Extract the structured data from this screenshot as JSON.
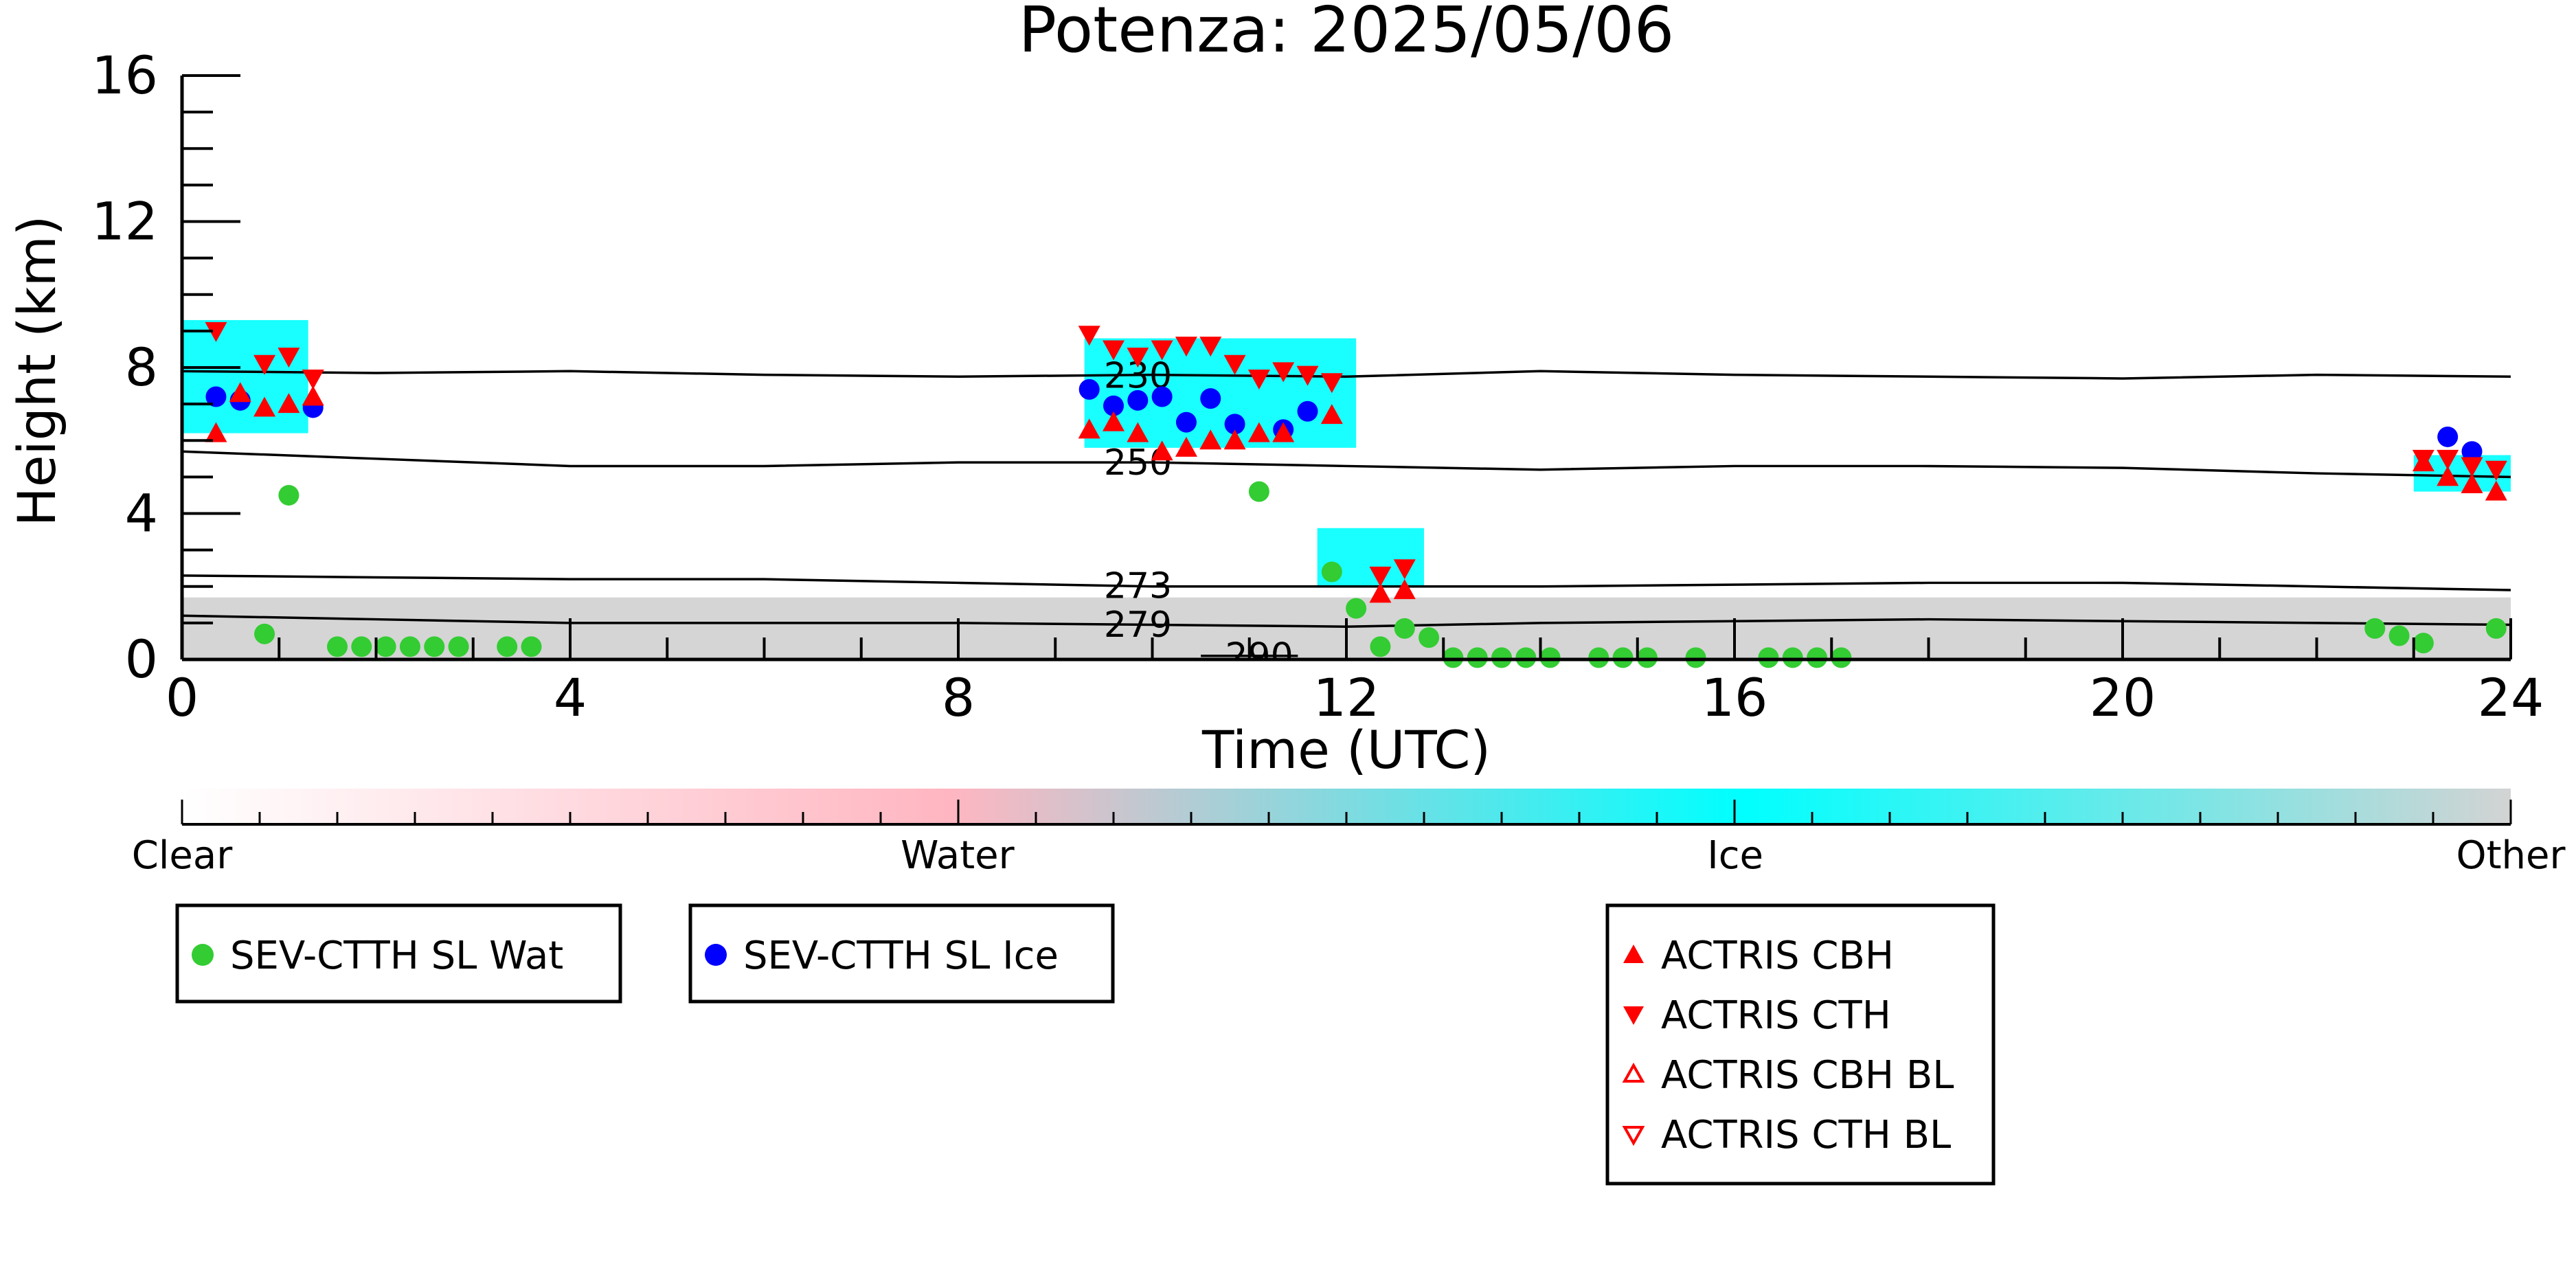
{
  "chart_data": {
    "type": "scatter",
    "title": "Potenza: 2025/05/06",
    "xlabel": "Time (UTC)",
    "ylabel": "Height (km)",
    "xlim": [
      0,
      24
    ],
    "ylim": [
      0,
      16
    ],
    "xticks": [
      0,
      4,
      8,
      12,
      16,
      20,
      24
    ],
    "yticks": [
      0,
      4,
      8,
      12,
      16
    ],
    "grid": false,
    "colorbar": {
      "labels": [
        "Clear",
        "Water",
        "Ice",
        "Other"
      ],
      "stops": [
        {
          "pos": 0.0,
          "color": "#ffffff"
        },
        {
          "pos": 0.33,
          "color": "#ffb6c1"
        },
        {
          "pos": 0.67,
          "color": "#00ffff"
        },
        {
          "pos": 1.0,
          "color": "#d3d3d3"
        }
      ]
    },
    "cloud_regions": [
      {
        "type": "ice",
        "color": "#00ffff",
        "x0": 0.0,
        "x1": 1.3,
        "y0": 6.2,
        "y1": 9.3
      },
      {
        "type": "ice",
        "color": "#00ffff",
        "x0": 9.3,
        "x1": 12.1,
        "y0": 5.8,
        "y1": 8.8
      },
      {
        "type": "ice",
        "color": "#00ffff",
        "x0": 11.7,
        "x1": 12.8,
        "y0": 2.0,
        "y1": 3.6
      },
      {
        "type": "ice",
        "color": "#00ffff",
        "x0": 23.0,
        "x1": 24.0,
        "y0": 4.6,
        "y1": 5.6
      },
      {
        "type": "other",
        "color": "#d3d3d3",
        "x0": 0.0,
        "x1": 24.0,
        "y0": 0.0,
        "y1": 1.7
      }
    ],
    "isotherms": [
      {
        "label": "230",
        "x": [
          0,
          2,
          4,
          6,
          8,
          10,
          12,
          14,
          16,
          18,
          20,
          22,
          24
        ],
        "y": [
          7.9,
          7.85,
          7.9,
          7.8,
          7.75,
          7.8,
          7.75,
          7.9,
          7.8,
          7.75,
          7.7,
          7.8,
          7.75
        ]
      },
      {
        "label": "250",
        "x": [
          0,
          2,
          4,
          6,
          8,
          10,
          12,
          14,
          16,
          18,
          20,
          22,
          24
        ],
        "y": [
          5.7,
          5.5,
          5.3,
          5.3,
          5.4,
          5.4,
          5.3,
          5.2,
          5.3,
          5.3,
          5.25,
          5.1,
          5.0
        ]
      },
      {
        "label": "273",
        "x": [
          0,
          2,
          4,
          6,
          8,
          10,
          12,
          14,
          16,
          18,
          20,
          22,
          24
        ],
        "y": [
          2.3,
          2.25,
          2.2,
          2.2,
          2.1,
          2.0,
          2.0,
          2.0,
          2.05,
          2.1,
          2.1,
          2.0,
          1.9
        ]
      },
      {
        "label": "279",
        "x": [
          0,
          2,
          4,
          6,
          8,
          10,
          12,
          14,
          16,
          18,
          20,
          22,
          24
        ],
        "y": [
          1.2,
          1.1,
          1.0,
          1.0,
          1.0,
          0.95,
          0.9,
          1.0,
          1.05,
          1.1,
          1.05,
          1.0,
          0.95
        ]
      },
      {
        "label": "290",
        "x": [
          10.5,
          11.0,
          11.5
        ],
        "y": [
          0.1,
          0.1,
          0.1
        ]
      }
    ],
    "series": [
      {
        "name": "SEV-CTTH SL Wat",
        "marker": "circle",
        "color": "#33cc33",
        "x": [
          0.85,
          1.1,
          1.6,
          1.85,
          2.1,
          2.35,
          2.6,
          2.85,
          3.35,
          3.6,
          11.1,
          11.85,
          12.1,
          12.35,
          12.6,
          12.85,
          13.1,
          13.35,
          13.6,
          13.85,
          14.1,
          14.6,
          14.85,
          15.1,
          15.6,
          16.35,
          16.6,
          16.85,
          17.1,
          22.6,
          22.85,
          23.1,
          23.85
        ],
        "y": [
          0.7,
          4.5,
          0.35,
          0.35,
          0.35,
          0.35,
          0.35,
          0.35,
          0.35,
          0.35,
          4.6,
          2.4,
          1.4,
          0.35,
          0.85,
          0.6,
          0.05,
          0.05,
          0.05,
          0.05,
          0.05,
          0.05,
          0.05,
          0.05,
          0.05,
          0.05,
          0.05,
          0.05,
          0.05,
          0.85,
          0.65,
          0.45,
          0.85
        ]
      },
      {
        "name": "SEV-CTTH SL Ice",
        "marker": "circle",
        "color": "#0000ff",
        "x": [
          0.35,
          0.6,
          1.35,
          9.35,
          9.6,
          9.85,
          10.1,
          10.35,
          10.6,
          10.85,
          11.35,
          11.6,
          23.35,
          23.6
        ],
        "y": [
          7.2,
          7.1,
          6.9,
          7.4,
          6.95,
          7.1,
          7.2,
          6.5,
          7.15,
          6.45,
          6.3,
          6.8,
          6.1,
          5.7
        ]
      },
      {
        "name": "ACTRIS CBH",
        "marker": "triangle-up",
        "color": "#ff0000",
        "x": [
          0.35,
          0.6,
          0.85,
          1.1,
          1.35,
          9.35,
          9.6,
          9.85,
          10.1,
          10.35,
          10.6,
          10.85,
          11.1,
          11.35,
          11.85,
          12.35,
          12.6,
          23.1,
          23.35,
          23.6,
          23.85
        ],
        "y": [
          6.2,
          7.3,
          6.9,
          7.0,
          7.2,
          6.3,
          6.5,
          6.2,
          5.7,
          5.8,
          6.0,
          6.0,
          6.2,
          6.2,
          6.7,
          1.8,
          1.9,
          5.4,
          5.0,
          4.8,
          4.6
        ]
      },
      {
        "name": "ACTRIS CTH",
        "marker": "triangle-down",
        "color": "#ff0000",
        "x": [
          0.35,
          0.85,
          1.1,
          1.35,
          9.35,
          9.6,
          9.85,
          10.1,
          10.35,
          10.6,
          10.85,
          11.1,
          11.35,
          11.6,
          11.85,
          12.35,
          12.6,
          23.1,
          23.35,
          23.6,
          23.85
        ],
        "y": [
          9.0,
          8.1,
          8.3,
          7.7,
          8.9,
          8.5,
          8.3,
          8.5,
          8.6,
          8.6,
          8.1,
          7.7,
          7.9,
          7.8,
          7.6,
          2.3,
          2.5,
          5.5,
          5.5,
          5.3,
          5.2
        ]
      },
      {
        "name": "ACTRIS CBH BL",
        "marker": "triangle-up-open",
        "color": "#ff0000",
        "x": [],
        "y": []
      },
      {
        "name": "ACTRIS CTH BL",
        "marker": "triangle-down-open",
        "color": "#ff0000",
        "x": [],
        "y": []
      }
    ]
  }
}
